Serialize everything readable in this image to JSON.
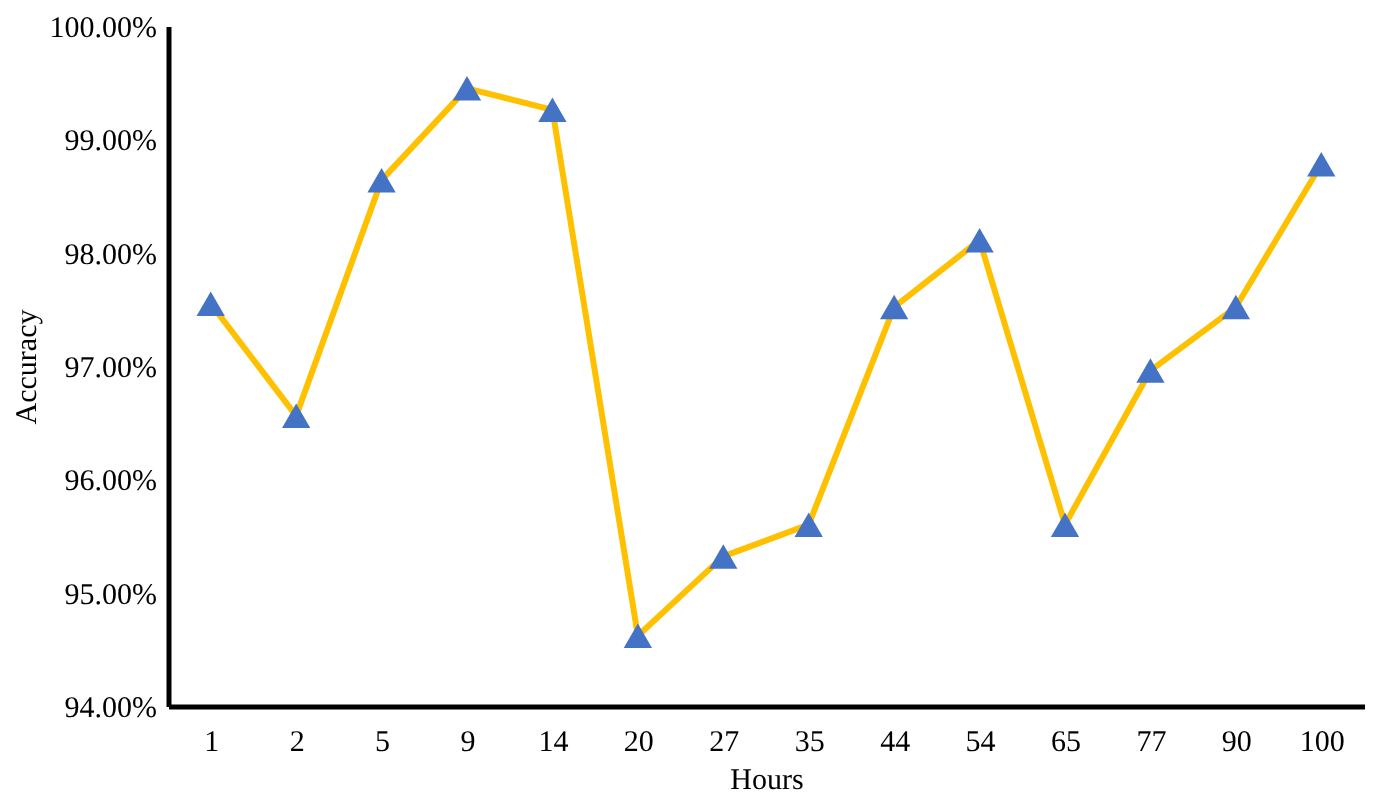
{
  "chart_data": {
    "type": "line",
    "xlabel": "Hours",
    "ylabel": "Accuracy",
    "categories": [
      "1",
      "2",
      "5",
      "9",
      "14",
      "20",
      "27",
      "35",
      "44",
      "54",
      "65",
      "77",
      "90",
      "100"
    ],
    "series": [
      {
        "color": "#ffc000",
        "colors": [
          "#4472c4",
          "#4472c4",
          "#4472c4",
          "#4472c4",
          "#4472c4",
          "#4472c4",
          "#4472c4",
          "#4472c4",
          "#4472c4",
          "#4472c4",
          "#4472c4",
          "#4472c4",
          "#4472c4",
          "#4472c4"
        ],
        "values": [
          97.55,
          96.56,
          98.64,
          99.45,
          99.26,
          94.62,
          95.32,
          95.6,
          97.52,
          98.11,
          95.6,
          96.96,
          97.52,
          98.78
        ]
      }
    ],
    "ylim": [
      94,
      100
    ],
    "yticks": [
      {
        "value": 94,
        "label": "94.00%"
      },
      {
        "value": 95,
        "label": "95.00%"
      },
      {
        "value": 96,
        "label": "96.00%"
      },
      {
        "value": 97,
        "label": "97.00%"
      },
      {
        "value": 98,
        "label": "98.00%"
      },
      {
        "value": 99,
        "label": "99.00%"
      },
      {
        "value": 100,
        "label": "100.00%"
      }
    ],
    "marker": "triangle",
    "line_style": "solid",
    "grid": false
  }
}
